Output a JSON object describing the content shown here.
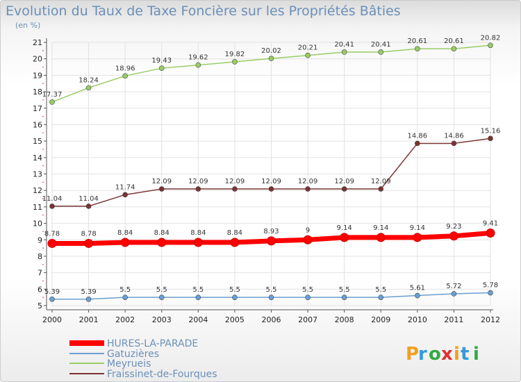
{
  "chart_data": {
    "type": "line",
    "title": "Evolution du Taux de Taxe Foncière sur les Propriétés Bâties",
    "unit_label": "(en %)",
    "x": [
      "2000",
      "2001",
      "2002",
      "2003",
      "2004",
      "2005",
      "2006",
      "2007",
      "2008",
      "2009",
      "2010",
      "2011",
      "2012"
    ],
    "ylim": [
      5,
      21
    ],
    "yticks": [
      "5",
      "6",
      "7",
      "8",
      "9",
      "10",
      "11",
      "12",
      "13",
      "14",
      "15",
      "16",
      "17",
      "18",
      "19",
      "20",
      "21"
    ],
    "grid": true,
    "legend_position": "bottom-left",
    "series": [
      {
        "name": "HURES-LA-PARADE",
        "color": "#ff0000",
        "values": [
          8.78,
          8.78,
          8.84,
          8.84,
          8.84,
          8.84,
          8.93,
          9,
          9.14,
          9.14,
          9.14,
          9.23,
          9.41
        ],
        "labels": [
          "8.78",
          "8.78",
          "8.84",
          "8.84",
          "8.84",
          "8.84",
          "8.93",
          "9",
          "9.14",
          "9.14",
          "9.14",
          "9.23",
          "9.41"
        ]
      },
      {
        "name": "Gatuzières",
        "color": "#6a9fd4",
        "values": [
          5.39,
          5.39,
          5.5,
          5.5,
          5.5,
          5.5,
          5.5,
          5.5,
          5.5,
          5.5,
          5.61,
          5.72,
          5.78
        ],
        "labels": [
          "5.39",
          "5.39",
          "5.5",
          "5.5",
          "5.5",
          "5.5",
          "5.5",
          "5.5",
          "5.5",
          "5.5",
          "5.61",
          "5.72",
          "5.78"
        ]
      },
      {
        "name": "Meyrueis",
        "color": "#99cc66",
        "values": [
          17.37,
          18.24,
          18.96,
          19.43,
          19.62,
          19.82,
          20.02,
          20.21,
          20.41,
          20.41,
          20.61,
          20.61,
          20.82
        ],
        "labels": [
          "17.37",
          "18.24",
          "18.96",
          "19.43",
          "19.62",
          "19.82",
          "20.02",
          "20.21",
          "20.41",
          "20.41",
          "20.61",
          "20.61",
          "20.82"
        ]
      },
      {
        "name": "Fraissinet-de-Fourques",
        "color": "#7a3333",
        "values": [
          11.04,
          11.04,
          11.74,
          12.09,
          12.09,
          12.09,
          12.09,
          12.09,
          12.09,
          12.09,
          14.86,
          14.86,
          15.16
        ],
        "labels": [
          "11.04",
          "11.04",
          "11.74",
          "12.09",
          "12.09",
          "12.09",
          "12.09",
          "12.09",
          "12.09",
          "12.09",
          "14.86",
          "14.86",
          "15.16"
        ]
      }
    ]
  },
  "logo": {
    "text": "Proxiti"
  }
}
